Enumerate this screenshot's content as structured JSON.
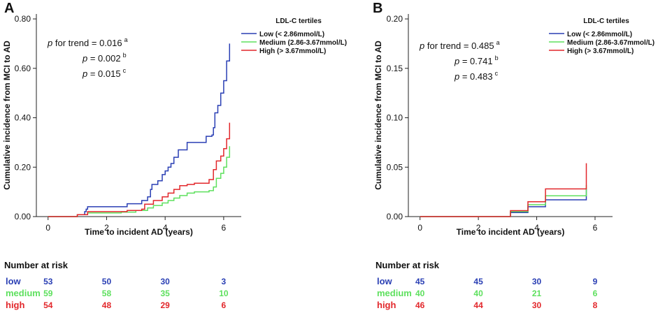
{
  "colors": {
    "low": "#2a3fb4",
    "medium": "#5ee05e",
    "high": "#e2272b",
    "axis": "#222222"
  },
  "legend_title": "LDL-C tertiles",
  "risk_header": "Number at risk",
  "chart_data": [
    {
      "panel": "A",
      "type": "line",
      "step": true,
      "xlabel": "Time to incident AD (years)",
      "ylabel": "Cumulative incidence from MCI to AD",
      "xlim": [
        -0.4,
        6.6
      ],
      "ylim": [
        0,
        0.82
      ],
      "xticks": [
        0,
        2,
        4,
        6
      ],
      "xtick_labels": [
        "0",
        "2",
        "4",
        "6"
      ],
      "yticks": [
        0,
        0.2,
        0.4,
        0.6,
        0.8
      ],
      "ytick_labels": [
        "0.00",
        "0.20",
        "0.40",
        "0.60",
        "0.80"
      ],
      "annotations": [
        {
          "prefix": "p",
          "text": " for trend = 0.016",
          "sup": "a"
        },
        {
          "prefix": "p",
          "text": " = 0.002",
          "sup": "b"
        },
        {
          "prefix": "p",
          "text": " = 0.015",
          "sup": "c"
        }
      ],
      "series": [
        {
          "name": "Low (< 2.86mmol/L)",
          "key": "low",
          "x": [
            0,
            1.0,
            1.25,
            1.3,
            1.35,
            2.7,
            3.2,
            3.4,
            3.5,
            3.55,
            3.75,
            3.9,
            4.0,
            4.1,
            4.2,
            4.3,
            4.45,
            4.75,
            5.4,
            5.6,
            5.65,
            5.7,
            5.8,
            5.9,
            6.0,
            6.1,
            6.2
          ],
          "y": [
            0,
            0.008,
            0.02,
            0.03,
            0.04,
            0.052,
            0.065,
            0.08,
            0.11,
            0.13,
            0.145,
            0.17,
            0.185,
            0.2,
            0.215,
            0.24,
            0.27,
            0.3,
            0.325,
            0.33,
            0.36,
            0.42,
            0.45,
            0.5,
            0.55,
            0.63,
            0.7
          ]
        },
        {
          "name": "Medium (2.86-3.67mmol/L)",
          "key": "medium",
          "x": [
            0,
            1.0,
            1.35,
            2.5,
            3.0,
            3.4,
            3.6,
            3.9,
            4.1,
            4.3,
            4.5,
            4.75,
            5.0,
            5.5,
            5.65,
            5.75,
            5.9,
            6.0,
            6.1,
            6.2
          ],
          "y": [
            0,
            0.008,
            0.015,
            0.018,
            0.025,
            0.035,
            0.045,
            0.055,
            0.065,
            0.075,
            0.085,
            0.095,
            0.1,
            0.105,
            0.12,
            0.155,
            0.175,
            0.2,
            0.24,
            0.285
          ]
        },
        {
          "name": "High (> 3.67mmol/L)",
          "key": "high",
          "x": [
            0,
            1.0,
            1.35,
            2.7,
            3.2,
            3.3,
            3.6,
            3.9,
            4.1,
            4.3,
            4.5,
            4.75,
            5.0,
            5.5,
            5.65,
            5.75,
            5.9,
            6.0,
            6.1,
            6.2
          ],
          "y": [
            0,
            0.008,
            0.02,
            0.025,
            0.03,
            0.05,
            0.065,
            0.08,
            0.095,
            0.11,
            0.125,
            0.13,
            0.135,
            0.15,
            0.19,
            0.225,
            0.245,
            0.275,
            0.315,
            0.38
          ]
        }
      ],
      "risk_table": {
        "times": [
          0,
          2,
          4,
          6
        ],
        "rows": [
          {
            "label": "low",
            "key": "low",
            "values": [
              "53",
              "50",
              "30",
              "3"
            ]
          },
          {
            "label": "medium",
            "key": "medium",
            "values": [
              "59",
              "58",
              "35",
              "10"
            ]
          },
          {
            "label": "high",
            "key": "high",
            "values": [
              "54",
              "48",
              "29",
              "6"
            ]
          }
        ]
      }
    },
    {
      "panel": "B",
      "type": "line",
      "step": true,
      "xlabel": "Time to incident AD (years)",
      "ylabel": "Cumulative incidence from MCI to AD",
      "xlim": [
        -0.4,
        6.6
      ],
      "ylim": [
        0,
        0.205
      ],
      "xticks": [
        0,
        2,
        4,
        6
      ],
      "xtick_labels": [
        "0",
        "2",
        "4",
        "6"
      ],
      "yticks": [
        0,
        0.05,
        0.1,
        0.15,
        0.2
      ],
      "ytick_labels": [
        "0.00",
        "0.05",
        "0.10",
        "0.15",
        "0.20"
      ],
      "annotations": [
        {
          "prefix": "p",
          "text": " for trend = 0.485",
          "sup": "a"
        },
        {
          "prefix": "p",
          "text": " = 0.741",
          "sup": "b"
        },
        {
          "prefix": "p",
          "text": " = 0.483",
          "sup": "c"
        }
      ],
      "series": [
        {
          "name": "Low (< 2.86mmol/L)",
          "key": "low",
          "x": [
            0,
            3.1,
            3.7,
            4.3,
            5.7,
            5.7
          ],
          "y": [
            0,
            0.004,
            0.01,
            0.017,
            0.022,
            0.028
          ]
        },
        {
          "name": "Medium (2.86-3.67mmol/L)",
          "key": "medium",
          "x": [
            0,
            3.1,
            3.7,
            4.3,
            5.7,
            5.7
          ],
          "y": [
            0,
            0.005,
            0.012,
            0.021,
            0.027,
            0.032
          ]
        },
        {
          "name": "High (> 3.67mmol/L)",
          "key": "high",
          "x": [
            0,
            3.1,
            3.7,
            4.3,
            5.7,
            5.7
          ],
          "y": [
            0,
            0.006,
            0.015,
            0.028,
            0.036,
            0.054
          ]
        }
      ],
      "risk_table": {
        "times": [
          0,
          2,
          4,
          6
        ],
        "rows": [
          {
            "label": "low",
            "key": "low",
            "values": [
              "45",
              "45",
              "30",
              "9"
            ]
          },
          {
            "label": "medium",
            "key": "medium",
            "values": [
              "40",
              "40",
              "21",
              "6"
            ]
          },
          {
            "label": "high",
            "key": "high",
            "values": [
              "46",
              "44",
              "30",
              "8"
            ]
          }
        ]
      }
    }
  ]
}
